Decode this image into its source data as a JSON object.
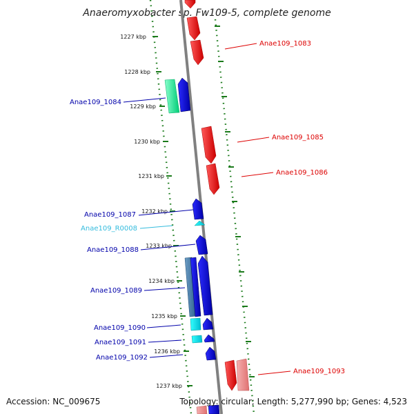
{
  "title": "Anaeromyxobacter sp. Fw109-5, complete genome",
  "footer": {
    "accession": "Accession: NC_009675",
    "summary": "Topology: circular; Length: 5,277,990 bp; Genes: 4,523"
  },
  "ticks": [
    "1227 kbp",
    "1228 kbp",
    "1229 kbp",
    "1230 kbp",
    "1231 kbp",
    "1232 kbp",
    "1233 kbp",
    "1234 kbp",
    "1235 kbp",
    "1236 kbp",
    "1237 kbp"
  ],
  "genes": {
    "left": [
      "Anae109_1084",
      "Anae109_1087",
      "Anae109_R0008",
      "Anae109_1088",
      "Anae109_1089",
      "Anae109_1090",
      "Anae109_1091",
      "Anae109_1092"
    ],
    "right": [
      "Anae109_1083",
      "Anae109_1085",
      "Anae109_1086",
      "Anae109_1093"
    ]
  },
  "colors": {
    "forward_strand": "#e00000",
    "reverse_strand": "#0000dd",
    "rna": "#33ccee",
    "tick": "#1a7a1a"
  }
}
